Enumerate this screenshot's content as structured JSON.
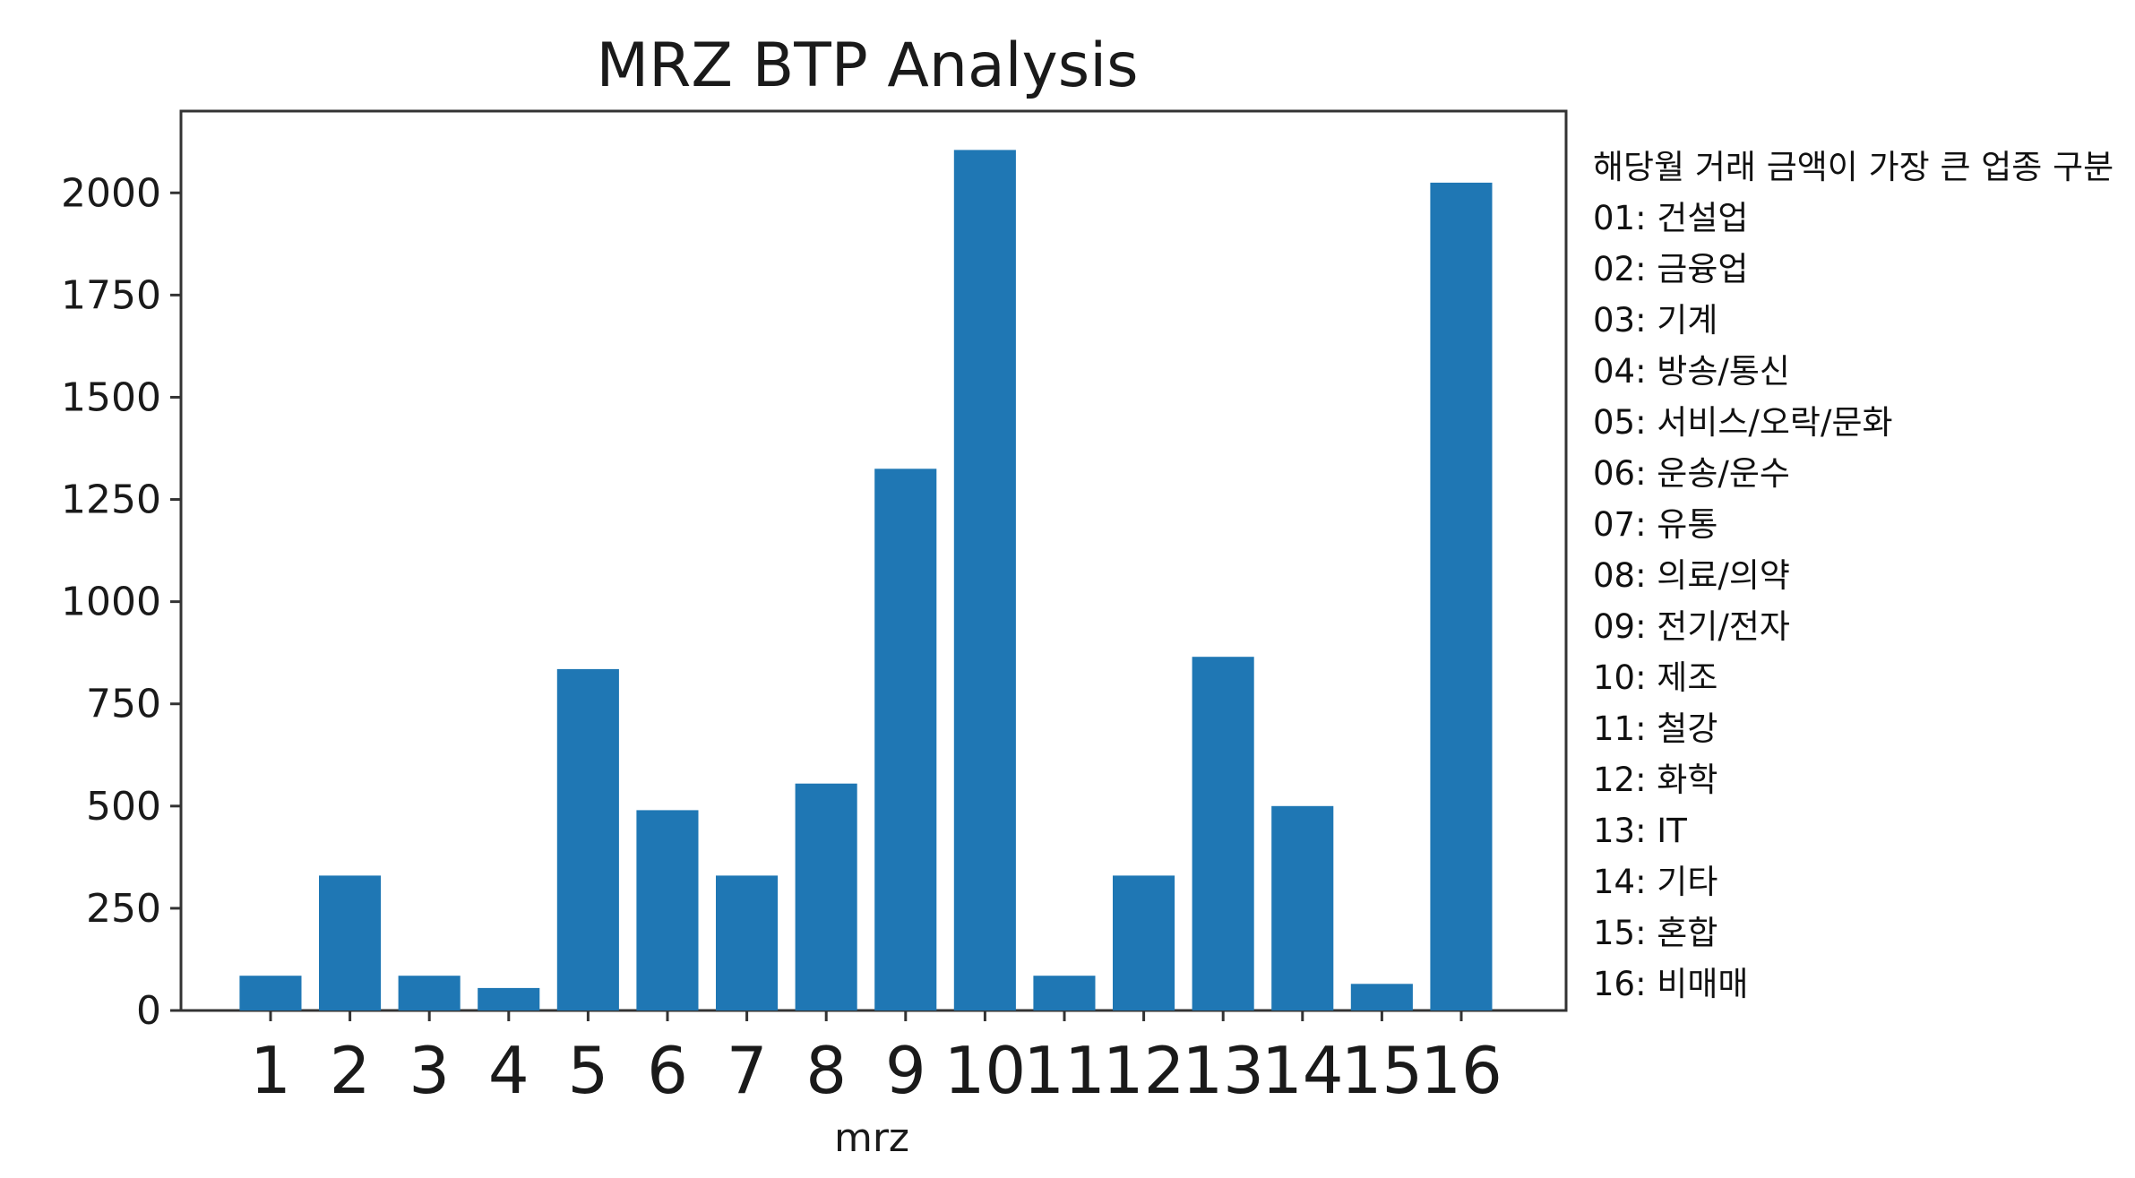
{
  "chart_data": {
    "type": "bar",
    "title": "MRZ BTP Analysis",
    "xlabel": "mrz",
    "ylabel": "",
    "categories": [
      "1",
      "2",
      "3",
      "4",
      "5",
      "6",
      "7",
      "8",
      "9",
      "10",
      "11",
      "12",
      "13",
      "14",
      "15",
      "16"
    ],
    "values": [
      85,
      330,
      85,
      55,
      835,
      490,
      330,
      555,
      1325,
      2105,
      85,
      330,
      865,
      500,
      65,
      2025
    ],
    "ylim": [
      0,
      2200
    ],
    "yticks": [
      0,
      250,
      500,
      750,
      1000,
      1250,
      1500,
      1750,
      2000
    ],
    "bar_color": "#1f77b4",
    "grid": false,
    "legend_placement": "right",
    "annotation_lines": [
      "해당월 거래 금액이 가장 큰 업종 구분",
      "01: 건설업",
      "02: 금융업",
      "03: 기계",
      "04: 방송/통신",
      "05: 서비스/오락/문화",
      "06: 운송/운수",
      "07: 유통",
      "08: 의료/의약",
      "09: 전기/전자",
      "10: 제조",
      "11: 철강",
      "12: 화학",
      "13: IT",
      "14: 기타",
      "15: 혼합",
      "16: 비매매"
    ]
  }
}
